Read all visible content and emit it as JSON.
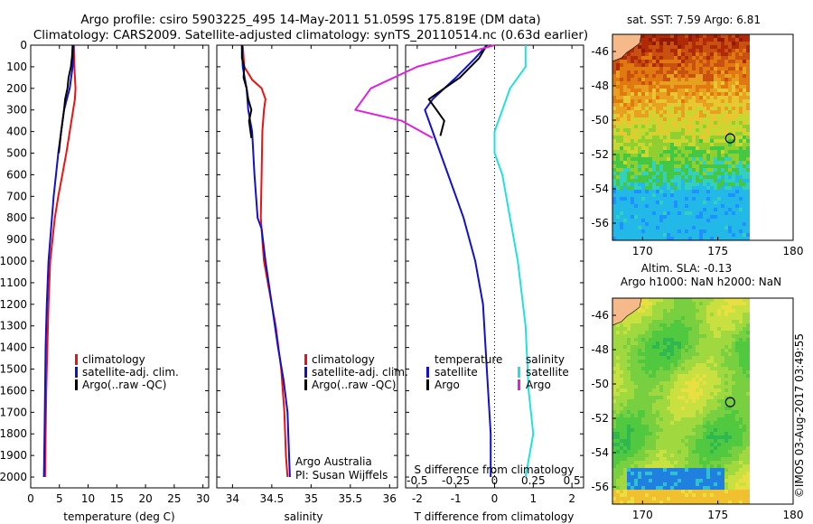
{
  "header": {
    "title_line1": "Argo profile: csiro 5903225_495 14-May-2011 51.059S 175.819E (DM data)",
    "title_line2": "Climatology: CARS2009. Satellite-adjusted climatology: synTS_20110514.nc (0.63d earlier)"
  },
  "credit": "©IMOS 03-Aug-2017 03:49:55",
  "colors": {
    "climatology": "#ee1111",
    "satellite": "#1111cc",
    "argo": "#000000",
    "sal_satellite": "#22e0e0",
    "sal_argo": "#dd22dd",
    "land": "#f6b98a"
  },
  "chart_data": [
    {
      "type": "line",
      "panel": "temperature",
      "xlabel": "temperature (deg C)",
      "xlim": [
        0,
        31
      ],
      "xticks": [
        0,
        5,
        10,
        15,
        20,
        25,
        30
      ],
      "ylim": [
        0,
        2050
      ],
      "yticks": [
        0,
        100,
        200,
        300,
        400,
        500,
        600,
        700,
        800,
        900,
        1000,
        1100,
        1200,
        1300,
        1400,
        1500,
        1600,
        1700,
        1800,
        1900,
        2000
      ],
      "legend": [
        "climatology",
        "satellite-adj. clim.",
        "Argo(..raw -QC)"
      ],
      "series": [
        {
          "name": "climatology",
          "color_key": "climatology",
          "x": [
            7.5,
            7.6,
            7.8,
            7.7,
            7.4,
            6.8,
            6.2,
            5.5,
            4.8,
            4.2,
            3.8,
            3.4,
            3.1,
            2.9,
            2.7,
            2.6,
            2.5
          ],
          "y": [
            0,
            100,
            200,
            250,
            300,
            400,
            500,
            600,
            700,
            800,
            900,
            1000,
            1200,
            1400,
            1600,
            1800,
            2000
          ]
        },
        {
          "name": "satellite-adj. clim.",
          "color_key": "satellite",
          "x": [
            7.5,
            7.3,
            6.8,
            6.3,
            5.8,
            5.3,
            4.8,
            4.4,
            4.0,
            3.7,
            3.4,
            3.1,
            2.8,
            2.6,
            2.5,
            2.4,
            2.3
          ],
          "y": [
            0,
            100,
            200,
            250,
            300,
            400,
            500,
            600,
            700,
            800,
            900,
            1000,
            1200,
            1400,
            1600,
            1800,
            2000
          ]
        },
        {
          "name": "Argo(..raw -QC)",
          "color_key": "argo",
          "x": [
            7.3,
            7.2,
            7.0,
            6.6,
            6.4,
            6.0,
            5.8,
            5.3,
            4.9
          ],
          "y": [
            0,
            50,
            100,
            150,
            200,
            250,
            300,
            400,
            500
          ]
        }
      ]
    },
    {
      "type": "line",
      "panel": "salinity",
      "xlabel": "salinity",
      "xlim": [
        33.8,
        36.1
      ],
      "xticks": [
        34,
        34.5,
        35,
        35.5,
        36
      ],
      "ylim": [
        0,
        2050
      ],
      "legend": [
        "climatology",
        "satellite-adj. clim.",
        "Argo(..raw -QC)"
      ],
      "annotations": [
        "Argo Australia",
        "PI: Susan Wijffels"
      ],
      "series": [
        {
          "name": "climatology",
          "color_key": "climatology",
          "x": [
            34.13,
            34.15,
            34.25,
            34.37,
            34.42,
            34.4,
            34.38,
            34.37,
            34.36,
            34.38,
            34.4,
            34.45,
            34.55,
            34.62,
            34.66,
            34.68,
            34.7
          ],
          "y": [
            0,
            100,
            160,
            200,
            250,
            300,
            400,
            600,
            800,
            900,
            1000,
            1100,
            1300,
            1500,
            1700,
            1900,
            2000
          ]
        },
        {
          "name": "satellite-adj. clim.",
          "color_key": "satellite",
          "x": [
            34.12,
            34.13,
            34.18,
            34.2,
            34.25,
            34.28,
            34.32,
            34.37,
            34.42,
            34.5,
            34.58,
            34.65,
            34.7,
            34.72,
            34.73
          ],
          "y": [
            0,
            100,
            200,
            300,
            400,
            600,
            800,
            850,
            1000,
            1200,
            1400,
            1550,
            1700,
            1900,
            2000
          ]
        },
        {
          "name": "Argo(..raw -QC)",
          "color_key": "argo",
          "x": [
            34.12,
            34.12,
            34.15,
            34.14,
            34.18,
            34.2,
            34.24,
            34.21,
            34.24
          ],
          "y": [
            0,
            60,
            100,
            150,
            200,
            250,
            300,
            350,
            430
          ]
        }
      ]
    },
    {
      "type": "line",
      "panel": "differences",
      "xlabel": "T difference from climatology",
      "xlabel2": "S difference from climatology",
      "xlim": [
        -2.3,
        2.3
      ],
      "xticks": [
        -2,
        -1,
        0,
        1,
        2
      ],
      "xticks2": [
        -0.5,
        -0.25,
        0,
        0.25,
        0.5
      ],
      "ylim": [
        0,
        2050
      ],
      "legend_headers": [
        "temperature",
        "salinity"
      ],
      "legend": [
        "satellite",
        "Argo",
        "satellite",
        "Argo"
      ],
      "series": [
        {
          "name": "satellite",
          "group": "temperature",
          "color_key": "satellite",
          "x": [
            -0.2,
            -0.5,
            -1.0,
            -1.6,
            -1.8,
            -1.6,
            -1.4,
            -1.2,
            -1.0,
            -0.8,
            -0.5,
            -0.3,
            -0.2,
            -0.1,
            -0.1
          ],
          "y": [
            0,
            60,
            150,
            250,
            300,
            400,
            500,
            600,
            700,
            800,
            1000,
            1200,
            1500,
            1800,
            2000
          ]
        },
        {
          "name": "Argo",
          "group": "temperature",
          "color_key": "argo",
          "x": [
            -0.2,
            -0.4,
            -0.9,
            -1.3,
            -1.7,
            -1.5,
            -1.3,
            -1.4
          ],
          "y": [
            0,
            60,
            150,
            200,
            250,
            300,
            350,
            420
          ]
        },
        {
          "name": "satellite",
          "group": "salinity",
          "color_key": "sal_satellite",
          "x": [
            0.2,
            0.2,
            0.1,
            0.05,
            0.0,
            0.0,
            0.05,
            0.1,
            0.15,
            0.2,
            0.22,
            0.25,
            0.2
          ],
          "y": [
            0,
            100,
            200,
            300,
            400,
            500,
            600,
            800,
            1000,
            1300,
            1600,
            1800,
            2000
          ]
        },
        {
          "name": "Argo",
          "group": "salinity",
          "color_key": "sal_argo",
          "x": [
            0.0,
            -0.5,
            -0.8,
            -0.9,
            -0.6,
            -0.4
          ],
          "y": [
            0,
            100,
            200,
            300,
            350,
            430
          ]
        }
      ]
    },
    {
      "type": "heatmap",
      "panel": "map_sst",
      "title": "sat. SST: 7.59 Argo: 6.81",
      "xlim": [
        168,
        180
      ],
      "ylim": [
        -57,
        -45
      ],
      "xticks": [
        170,
        175,
        180
      ],
      "yticks": [
        -46,
        -48,
        -50,
        -52,
        -54,
        -56
      ],
      "marker": {
        "lon": 175.82,
        "lat": -51.06
      }
    },
    {
      "type": "heatmap",
      "panel": "map_sla",
      "title": "Altim. SLA: -0.13",
      "subtitle": "Argo h1000: NaN h2000: NaN",
      "xlim": [
        168,
        180
      ],
      "ylim": [
        -57,
        -45
      ],
      "xticks": [
        170,
        175,
        180
      ],
      "yticks": [
        -46,
        -48,
        -50,
        -52,
        -54,
        -56
      ],
      "marker": {
        "lon": 175.82,
        "lat": -51.06
      }
    }
  ]
}
